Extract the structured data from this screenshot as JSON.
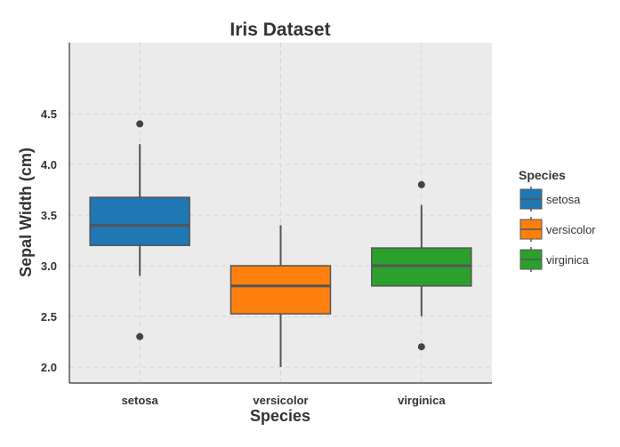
{
  "chart_data": {
    "type": "box",
    "title": "Iris Dataset",
    "xlabel": "Species",
    "ylabel": "Sepal Width (cm)",
    "ylim": [
      1.9,
      4.5
    ],
    "yticks": [
      "2.0",
      "2.5",
      "3.0",
      "3.5",
      "4.0",
      "4.5"
    ],
    "grid": true,
    "legend": {
      "title": "Species",
      "placement": "right"
    },
    "series": [
      {
        "name": "setosa",
        "color": "#1f77b4",
        "whisker_low": 2.9,
        "q1": 3.2,
        "median": 3.4,
        "q3": 3.675,
        "whisker_high": 4.2,
        "outliers": [
          4.4,
          2.3
        ]
      },
      {
        "name": "versicolor",
        "color": "#ff7f0e",
        "whisker_low": 2.0,
        "q1": 2.525,
        "median": 2.8,
        "q3": 3.0,
        "whisker_high": 3.4,
        "outliers": []
      },
      {
        "name": "virginica",
        "color": "#2ca02c",
        "whisker_low": 2.5,
        "q1": 2.8,
        "median": 3.0,
        "q3": 3.175,
        "whisker_high": 3.6,
        "outliers": [
          3.8,
          2.2
        ]
      }
    ]
  }
}
